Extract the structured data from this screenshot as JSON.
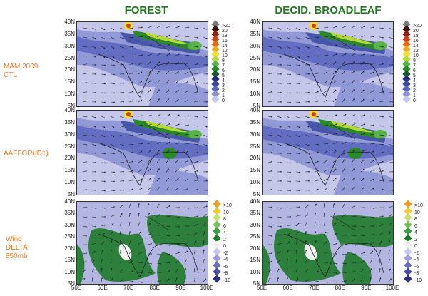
{
  "columns": [
    {
      "title": "FOREST"
    },
    {
      "title": "DECID. BROADLEAF"
    }
  ],
  "row_labels": [
    {
      "text": "MAM,2009\nCTL"
    },
    {
      "text": "AAFFOR(ID1)"
    },
    {
      "text": "Wind\nDELTA\n850mb"
    }
  ],
  "y_ticks": [
    "40N",
    "35N",
    "30N",
    "25N",
    "20N",
    "15N",
    "10N",
    "5N"
  ],
  "x_ticks": [
    "50E",
    "60E",
    "70E",
    "80E",
    "90E",
    "100E"
  ],
  "legend_top": {
    "labels": [
      ">20",
      "20",
      "18",
      "16",
      "14",
      "12",
      "10",
      "8",
      "7",
      "6",
      "5",
      "4",
      "3",
      "2",
      "1",
      "0"
    ],
    "colors": [
      "#7a7a7a",
      "#3a1410",
      "#8a2410",
      "#d04018",
      "#e86a14",
      "#f5a820",
      "#f7dc30",
      "#b8d838",
      "#58b448",
      "#2a8a2a",
      "#1a5a2e",
      "#28307a",
      "#3a4aa0",
      "#5a66c0",
      "#8a90d4",
      "#c4c6ea"
    ]
  },
  "legend_bottom": {
    "labels": [
      ">10",
      "10",
      "8",
      "6",
      "4",
      "2",
      "0",
      "-2",
      "-4",
      "-6",
      "-8",
      "-10"
    ],
    "colors": [
      "#f39a1a",
      "#f7c830",
      "#c8e070",
      "#78c060",
      "#3aa040",
      "#1e7a2a",
      "#f0f0f0",
      "#c4c6ea",
      "#9a9ed8",
      "#6a70c0",
      "#4a4ea8",
      "#2a2e80"
    ]
  }
}
